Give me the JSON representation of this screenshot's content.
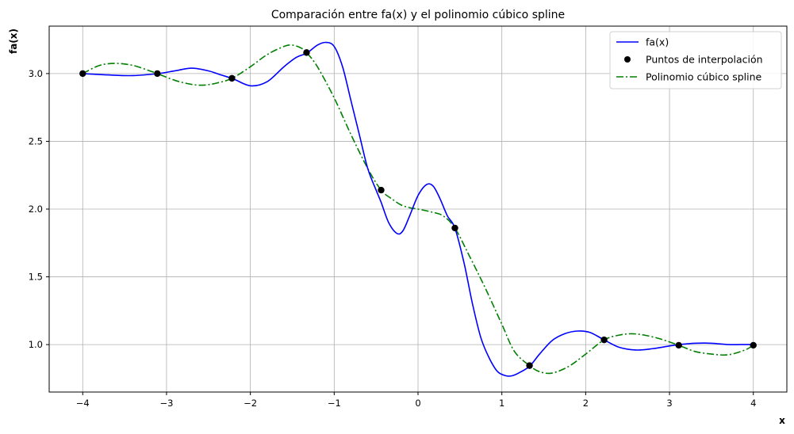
{
  "chart_data": {
    "type": "line",
    "title": "Comparación entre fa(x) y el polinomio cúbico spline",
    "xlabel": "x",
    "ylabel": "fa(x)",
    "xlim": [
      -4.4,
      4.4
    ],
    "ylim": [
      0.65,
      3.35
    ],
    "xticks": [
      -4,
      -3,
      -2,
      -1,
      0,
      1,
      2,
      3,
      4
    ],
    "xtick_labels": [
      "−4",
      "−3",
      "−2",
      "−1",
      "0",
      "1",
      "2",
      "3",
      "4"
    ],
    "yticks": [
      1.0,
      1.5,
      2.0,
      2.5,
      3.0
    ],
    "ytick_labels": [
      "1.0",
      "1.5",
      "2.0",
      "2.5",
      "3.0"
    ],
    "grid": true,
    "legend_position": "top-right",
    "series": [
      {
        "name": "fa(x)",
        "kind": "line",
        "color": "#0000ff",
        "style": "solid",
        "x": [
          -4.0,
          -3.7,
          -3.4,
          -3.1,
          -2.9,
          -2.7,
          -2.5,
          -2.35,
          -2.2,
          -2.0,
          -1.8,
          -1.6,
          -1.45,
          -1.33,
          -1.2,
          -1.1,
          -1.0,
          -0.9,
          -0.8,
          -0.7,
          -0.6,
          -0.5,
          -0.44,
          -0.35,
          -0.25,
          -0.18,
          -0.1,
          0.0,
          0.1,
          0.18,
          0.26,
          0.35,
          0.44,
          0.55,
          0.65,
          0.75,
          0.85,
          0.95,
          1.05,
          1.12,
          1.2,
          1.33,
          1.45,
          1.6,
          1.75,
          1.9,
          2.05,
          2.22,
          2.4,
          2.6,
          2.8,
          3.0,
          3.12,
          3.3,
          3.5,
          3.7,
          3.85,
          4.0
        ],
        "y": [
          3.0,
          2.99,
          2.985,
          3.0,
          3.02,
          3.04,
          3.02,
          2.99,
          2.96,
          2.91,
          2.94,
          3.05,
          3.12,
          3.15,
          3.21,
          3.23,
          3.2,
          3.05,
          2.8,
          2.55,
          2.3,
          2.14,
          2.05,
          1.9,
          1.82,
          1.84,
          1.95,
          2.1,
          2.18,
          2.17,
          2.08,
          1.95,
          1.86,
          1.6,
          1.3,
          1.05,
          0.9,
          0.8,
          0.77,
          0.77,
          0.79,
          0.84,
          0.93,
          1.03,
          1.08,
          1.1,
          1.09,
          1.035,
          0.98,
          0.96,
          0.97,
          0.99,
          1.0,
          1.01,
          1.01,
          1.0,
          1.0,
          1.0
        ]
      },
      {
        "name": "Puntos de interpolación",
        "kind": "scatter",
        "color": "#000000",
        "x": [
          -4.0,
          -3.11,
          -2.22,
          -1.33,
          -0.44,
          0.44,
          1.33,
          2.22,
          3.11,
          4.0
        ],
        "y": [
          3.0,
          3.0,
          2.965,
          3.155,
          2.14,
          1.86,
          0.845,
          1.035,
          0.995,
          0.995
        ]
      },
      {
        "name": "Polinomio cúbico spline",
        "kind": "line",
        "color": "#008000",
        "style": "dashdot",
        "x": [
          -4.0,
          -3.8,
          -3.6,
          -3.4,
          -3.2,
          -3.11,
          -2.9,
          -2.7,
          -2.55,
          -2.4,
          -2.22,
          -2.0,
          -1.8,
          -1.6,
          -1.5,
          -1.4,
          -1.33,
          -1.2,
          -1.0,
          -0.8,
          -0.6,
          -0.44,
          -0.3,
          -0.2,
          -0.1,
          0.0,
          0.15,
          0.3,
          0.44,
          0.6,
          0.8,
          1.0,
          1.15,
          1.33,
          1.45,
          1.6,
          1.8,
          2.0,
          2.22,
          2.4,
          2.55,
          2.7,
          2.9,
          3.11,
          3.3,
          3.5,
          3.7,
          3.9,
          4.0
        ],
        "y": [
          3.0,
          3.06,
          3.075,
          3.06,
          3.02,
          3.0,
          2.95,
          2.92,
          2.915,
          2.93,
          2.965,
          3.05,
          3.14,
          3.2,
          3.21,
          3.19,
          3.155,
          3.05,
          2.82,
          2.55,
          2.3,
          2.14,
          2.07,
          2.03,
          2.01,
          2.0,
          1.98,
          1.95,
          1.86,
          1.67,
          1.42,
          1.15,
          0.95,
          0.845,
          0.8,
          0.79,
          0.84,
          0.93,
          1.035,
          1.07,
          1.08,
          1.07,
          1.04,
          0.995,
          0.95,
          0.93,
          0.925,
          0.96,
          0.995
        ]
      }
    ]
  }
}
